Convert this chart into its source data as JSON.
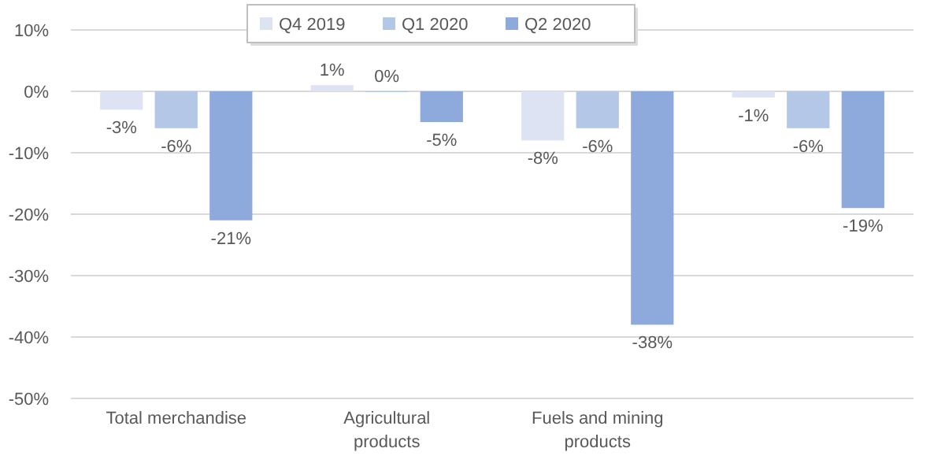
{
  "chart_data": {
    "type": "bar",
    "categories": [
      "Total merchandise",
      "Agricultural products",
      "Fuels and mining products",
      null
    ],
    "series": [
      {
        "name": "Q4 2019",
        "color": "#dde3f2",
        "values": [
          -3,
          1,
          -8,
          -1
        ],
        "value_labels": [
          "-3%",
          "1%",
          "-8%",
          "-1%"
        ]
      },
      {
        "name": "Q1 2020",
        "color": "#b4c7e7",
        "values": [
          -6,
          0,
          -6,
          -6
        ],
        "value_labels": [
          "-6%",
          "0%",
          "-6%",
          "-6%"
        ]
      },
      {
        "name": "Q2 2020",
        "color": "#8eaadc",
        "values": [
          -21,
          -5,
          -38,
          -19
        ],
        "value_labels": [
          "-21%",
          "-5%",
          "-38%",
          "-19%"
        ]
      }
    ],
    "ylim": [
      -50,
      10
    ],
    "yticks": [
      {
        "value": 10,
        "label": "10%"
      },
      {
        "value": 0,
        "label": "0%"
      },
      {
        "value": -10,
        "label": "-10%"
      },
      {
        "value": -20,
        "label": "-20%"
      },
      {
        "value": -30,
        "label": "-30%"
      },
      {
        "value": -40,
        "label": "-40%"
      },
      {
        "value": -50,
        "label": "-50%"
      }
    ],
    "grid": "y",
    "legend": "top"
  }
}
